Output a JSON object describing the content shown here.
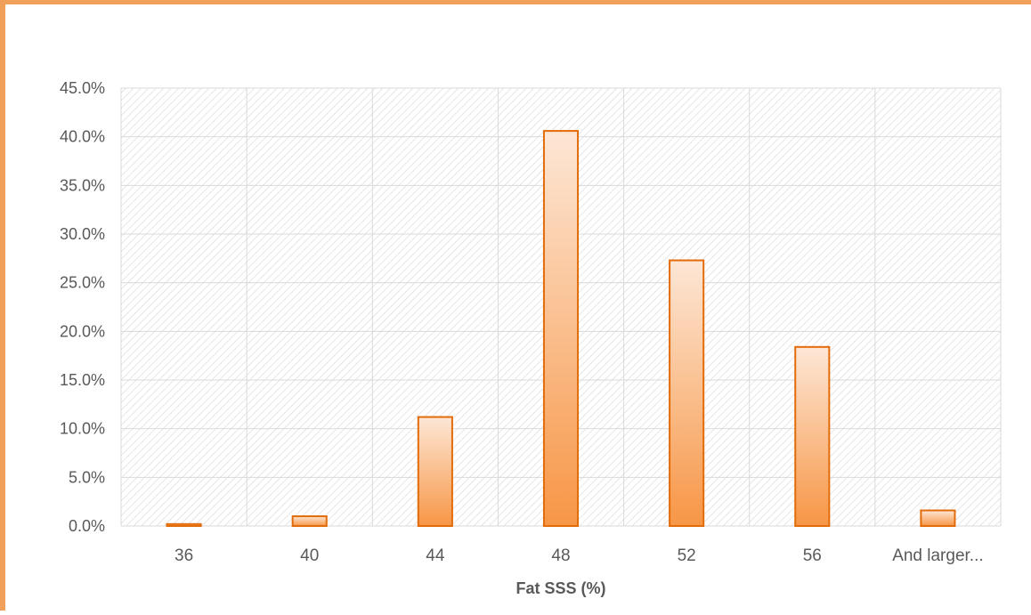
{
  "chart_data": {
    "type": "bar",
    "title": "",
    "xlabel": "Fat SSS (%)",
    "ylabel": "",
    "categories": [
      "36",
      "40",
      "44",
      "48",
      "52",
      "56",
      "And larger..."
    ],
    "values": [
      0.2,
      1.0,
      11.2,
      40.6,
      27.3,
      18.4,
      1.6
    ],
    "ylim": [
      0,
      45
    ],
    "ytick_step": 5,
    "ytick_labels": [
      "0.0%",
      "5.0%",
      "10.0%",
      "15.0%",
      "20.0%",
      "25.0%",
      "30.0%",
      "35.0%",
      "40.0%",
      "45.0%"
    ],
    "grid": true,
    "legend": "none",
    "colors": {
      "bar_top": "#fde7d6",
      "bar_bottom": "#f79646",
      "bar_stroke": "#e36c0a",
      "grid": "#d9d9d9",
      "frame": "#f0a05a",
      "hatch": "#d6d6d6"
    }
  }
}
